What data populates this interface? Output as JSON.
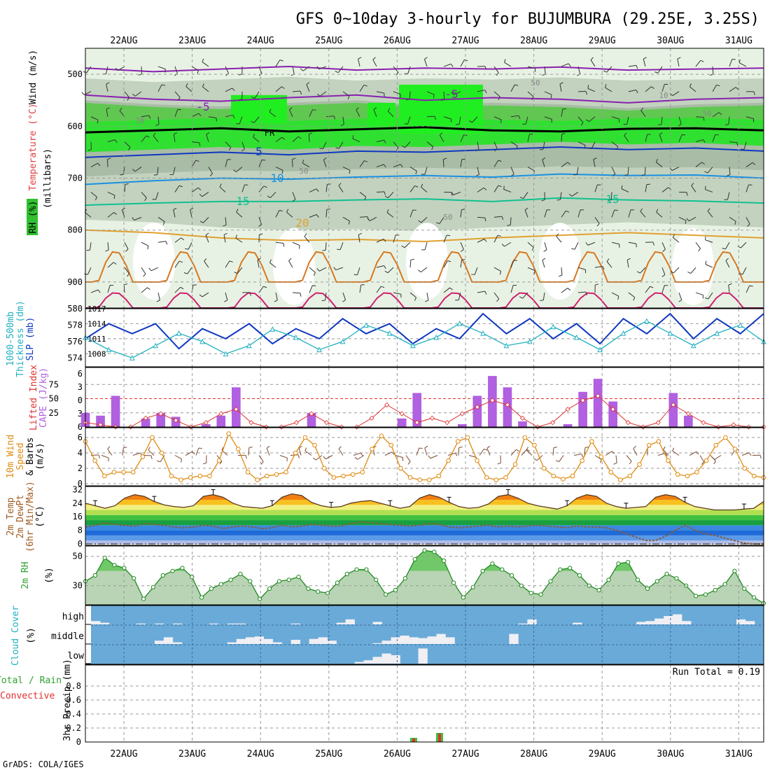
{
  "title": "GFS 0~10day 3-hourly for BUJUMBURA (29.25E, 3.25S)",
  "footer": "GrADS: COLA/IGES",
  "run_total": "Run Total = 0.19",
  "colors": {
    "temp_label": "#e04040",
    "wind_label": "#000000",
    "rh_label": "#00b000",
    "cyan": "#20b0c0",
    "blue": "#1038c0",
    "purple": "#b060e0",
    "red": "#e03030",
    "orange": "#e08a10",
    "green": "#30a030",
    "cloud_blue": "#6aaad8"
  },
  "chart_data": {
    "type": "line",
    "date_labels": [
      "22AUG",
      "23AUG",
      "24AUG",
      "25AUG",
      "26AUG",
      "27AUG",
      "28AUG",
      "29AUG",
      "30AUG",
      "31AUG"
    ],
    "panels": [
      {
        "id": "upper-air",
        "type": "heatmap",
        "ylabel_parts": [
          "Wind (m/s)",
          "Temperature (°C)",
          "RH (%)",
          "(millibars)"
        ],
        "y_ticks": [
          "500",
          "600",
          "700",
          "800",
          "900"
        ],
        "ylim": [
          950,
          450
        ],
        "contour_labels": [
          "-5",
          "-5",
          "5",
          "10",
          "15",
          "15",
          "20",
          "FR",
          "30",
          "50",
          "50",
          "50",
          "10",
          "50"
        ],
        "isotherms": [
          {
            "label": "-5",
            "color": "#8a20b0",
            "levels": [
              488,
              495,
              490,
              485,
              492,
              488,
              490,
              486,
              492,
              490,
              488
            ]
          },
          {
            "label": "-5",
            "color": "#8a20b0",
            "levels": [
              540,
              548,
              552,
              545,
              540,
              550,
              545,
              548,
              555,
              548,
              545
            ]
          },
          {
            "label": "FR",
            "color": "#000000",
            "levels": [
              612,
              608,
              604,
              610,
              606,
              602,
              608,
              610,
              605,
              604,
              608
            ]
          },
          {
            "label": "5",
            "color": "#1038c0",
            "levels": [
              660,
              655,
              650,
              655,
              648,
              650,
              645,
              640,
              645,
              642,
              648
            ]
          },
          {
            "label": "10",
            "color": "#1a90e0",
            "levels": [
              712,
              705,
              700,
              702,
              698,
              695,
              698,
              692,
              695,
              694,
              700
            ]
          },
          {
            "label": "15",
            "color": "#10c090",
            "levels": [
              752,
              748,
              745,
              745,
              742,
              740,
              745,
              738,
              742,
              744,
              748
            ]
          },
          {
            "label": "20",
            "color": "#e0a030",
            "levels": [
              800,
              805,
              815,
              820,
              818,
              822,
              815,
              810,
              805,
              810,
              815
            ]
          }
        ]
      },
      {
        "id": "slp-thickness",
        "type": "line",
        "ylabel_parts": [
          "1000-500mb",
          "Thickness (dm)",
          "SLP (mb)"
        ],
        "left_ticks": [
          "574",
          "576",
          "578",
          "580"
        ],
        "right_ticks": [
          "1008",
          "1011",
          "1014",
          "1017"
        ],
        "series": [
          {
            "name": "SLP (mb)",
            "values": [
              1011,
              1014,
              1012,
              1014,
              1009,
              1013,
              1011,
              1014,
              1010,
              1013,
              1011,
              1015,
              1012,
              1014,
              1010,
              1013,
              1011,
              1016,
              1012,
              1015,
              1011,
              1014,
              1010,
              1015,
              1012,
              1016,
              1011,
              1015,
              1012,
              1016
            ]
          },
          {
            "name": "Thickness (dm)",
            "values": [
              576.5,
              575,
              574,
              575.5,
              577,
              576,
              574.5,
              575.5,
              577.5,
              576.5,
              575,
              576,
              578,
              577,
              575.5,
              576.5,
              578.2,
              577,
              575.5,
              576,
              577.8,
              576.5,
              575,
              577,
              578.5,
              577,
              575.5,
              577,
              578,
              576
            ]
          }
        ]
      },
      {
        "id": "cape-li",
        "type": "bar",
        "ylabel_parts": [
          "Lifted Index",
          "CAPE (J/kg)"
        ],
        "left_ticks": [
          "-6",
          "-3",
          "0",
          "3",
          "6"
        ],
        "right_ticks": [
          "25",
          "50",
          "75"
        ],
        "series": [
          {
            "name": "CAPE (J/kg)",
            "values": [
              25,
              20,
              55,
              0,
              15,
              25,
              18,
              0,
              5,
              20,
              70,
              0,
              0,
              0,
              0,
              25,
              0,
              0,
              0,
              0,
              0,
              15,
              60,
              0,
              0,
              5,
              55,
              90,
              70,
              10,
              0,
              0,
              5,
              62,
              85,
              45,
              0,
              0,
              0,
              60,
              20,
              0,
              0,
              0,
              0,
              0
            ]
          },
          {
            "name": "Lifted Index",
            "values": [
              5,
              5.5,
              6,
              6,
              4,
              3,
              4.5,
              6,
              5,
              3,
              2,
              5,
              6,
              6,
              5,
              3,
              5,
              6,
              6,
              4,
              1,
              3,
              5,
              4,
              5,
              3,
              1.5,
              0,
              1,
              4,
              6,
              5,
              2,
              0,
              -1,
              2,
              5,
              6,
              5,
              1,
              3,
              5,
              6,
              5.5,
              6,
              6
            ]
          }
        ]
      },
      {
        "id": "wind10m",
        "type": "line",
        "ylabel_parts": [
          "10m Wind",
          "Speed",
          "& Barbs",
          "(m/s)"
        ],
        "left_ticks": [
          "0",
          "2",
          "4",
          "6"
        ],
        "series": [
          {
            "name": "10m Wind Speed",
            "values": [
              5.5,
              3,
              1,
              1.5,
              1.5,
              1.5,
              3.5,
              6,
              4,
              1,
              0.5,
              0.8,
              1,
              1,
              3,
              6.5,
              4.5,
              1.5,
              0.5,
              1,
              1.2,
              1.5,
              4,
              6,
              5,
              2,
              0.8,
              1,
              1.2,
              1.5,
              4.5,
              6.2,
              5,
              2,
              0.8,
              0.5,
              0.5,
              1,
              3,
              5.5,
              6,
              3,
              0.8,
              0.5,
              0.8,
              2.5,
              6,
              5,
              2,
              1,
              0.6,
              1,
              3,
              5.5,
              3.5,
              1.5,
              0.5,
              1,
              2.5,
              5,
              5.5,
              3,
              1.2,
              1,
              1.5,
              3,
              5,
              6,
              4.5,
              2,
              1,
              0.8
            ]
          }
        ]
      },
      {
        "id": "temp2m",
        "type": "area",
        "ylabel_parts": [
          "2m Temp",
          "2m DewPt",
          "(6hr Min/Max)",
          "(°C)"
        ],
        "left_ticks": [
          "0",
          "8",
          "16",
          "24",
          "32"
        ],
        "series": [
          {
            "name": "2m Temp",
            "values": [
              24,
              22.5,
              21,
              22.5,
              27,
              29,
              28,
              25,
              23,
              22,
              21.5,
              22.5,
              28,
              29,
              27.5,
              24,
              22,
              21.5,
              21,
              22.5,
              27.5,
              29.5,
              28.5,
              24.5,
              22.5,
              21.5,
              22,
              24,
              25,
              25.5,
              24,
              22.5,
              21,
              22,
              27,
              29,
              27.5,
              24.5,
              22,
              21,
              21.5,
              23.5,
              28,
              29,
              27,
              24,
              22.5,
              21.5,
              20.5,
              22.5,
              27,
              29,
              28,
              24,
              22,
              21,
              21.5,
              22,
              27.5,
              29,
              28,
              24.5,
              22,
              21,
              20,
              20,
              20,
              20.5,
              21,
              25
            ]
          },
          {
            "name": "2m DewPt",
            "values": [
              10,
              11,
              12.5,
              11.5,
              11,
              10.5,
              12,
              11.5,
              11,
              10,
              9.5,
              10,
              11,
              10.5,
              9,
              10,
              10.5,
              10,
              9,
              9.5,
              11,
              10,
              10.5,
              11.5,
              11,
              10.5,
              10.5,
              12,
              13,
              12.5,
              12,
              11.5,
              11,
              10.5,
              11,
              12,
              11.5,
              10,
              9.5,
              10,
              10.5,
              11,
              10,
              10.5,
              10,
              10.5,
              11,
              10.5,
              10,
              9.5,
              10.5,
              10,
              10,
              9.5,
              8,
              6,
              4,
              2,
              2,
              4.5,
              8,
              11,
              8,
              6,
              5,
              3.5,
              2,
              0.5,
              0,
              0
            ]
          }
        ]
      },
      {
        "id": "rh2m",
        "type": "area",
        "ylabel_parts": [
          "2m RH",
          "(%)"
        ],
        "left_ticks": [
          "30",
          "50"
        ],
        "series": [
          {
            "name": "2m RH",
            "values": [
              33,
              37,
              49,
              44,
              42,
              35,
              21,
              29,
              37,
              40,
              42,
              36,
              22,
              28,
              31,
              34,
              38,
              33,
              21,
              28,
              33,
              34,
              36,
              28,
              26,
              25,
              32,
              38,
              41,
              41,
              34,
              24,
              27,
              35,
              48,
              54,
              53,
              47,
              32,
              22,
              29,
              40,
              45,
              41,
              37,
              30,
              25,
              24,
              33,
              41,
              42,
              37,
              30,
              27,
              34,
              45,
              46,
              34,
              28,
              33,
              38,
              35,
              30,
              23,
              24,
              27,
              31,
              40,
              28,
              22,
              18
            ]
          }
        ]
      },
      {
        "id": "cloud",
        "type": "bar",
        "ylabel_parts": [
          "Cloud Cover",
          "(%)"
        ],
        "row_labels": [
          "high",
          "middle",
          "low"
        ],
        "series": [
          {
            "name": "high",
            "values": [
              20,
              10,
              0,
              0,
              0,
              5,
              0,
              5,
              0,
              5,
              0,
              0,
              0,
              5,
              0,
              5,
              5,
              0,
              0,
              0,
              0,
              0,
              5,
              0,
              0,
              0,
              0,
              10,
              30,
              0,
              0,
              15,
              0,
              0,
              0,
              0,
              0,
              0,
              0,
              0,
              0,
              0,
              0,
              0,
              0,
              0,
              0,
              5,
              30,
              0,
              0,
              0,
              0,
              10,
              0,
              0,
              0,
              0,
              0,
              0,
              15,
              20,
              35,
              50,
              60,
              20,
              0,
              0,
              0,
              0,
              0,
              30,
              20,
              0
            ]
          },
          {
            "name": "middle",
            "values": [
              0,
              0,
              0,
              0,
              0,
              0,
              0,
              20,
              40,
              10,
              0,
              0,
              0,
              0,
              0,
              10,
              30,
              40,
              45,
              30,
              10,
              0,
              25,
              0,
              30,
              40,
              20,
              0,
              0,
              0,
              0,
              5,
              20,
              40,
              50,
              40,
              35,
              45,
              60,
              40,
              0,
              0,
              0,
              0,
              0,
              0,
              60,
              0,
              0,
              0,
              0,
              0,
              0,
              0,
              0,
              0,
              0,
              0,
              0,
              0,
              0,
              0,
              0,
              0,
              0,
              0,
              0,
              0,
              0,
              0,
              0,
              0,
              0,
              0
            ]
          },
          {
            "name": "low",
            "values": [
              0,
              0,
              0,
              0,
              0,
              0,
              0,
              0,
              0,
              0,
              0,
              0,
              0,
              0,
              0,
              0,
              0,
              0,
              0,
              0,
              0,
              0,
              0,
              0,
              0,
              0,
              0,
              0,
              0,
              10,
              20,
              40,
              60,
              50,
              0,
              0,
              90,
              0,
              0,
              0,
              0,
              0,
              0,
              0,
              0,
              0,
              0,
              0,
              0,
              0,
              0,
              0,
              0,
              0,
              0,
              0,
              0,
              0,
              0,
              0,
              0,
              0,
              0,
              0,
              0,
              0,
              0,
              0,
              0,
              0,
              0,
              0,
              0,
              0
            ]
          }
        ]
      },
      {
        "id": "precip",
        "type": "bar",
        "ylabel_parts": [
          "Total / Rain",
          "Convective",
          "3hr Precip (mm)"
        ],
        "left_ticks": [
          "0",
          "0.2",
          "0.4",
          "0.6",
          "0.8"
        ],
        "ylim": [
          0,
          1
        ],
        "series": [
          {
            "name": "Total / Rain",
            "values": [
              0.06,
              0.13
            ]
          },
          {
            "name": "Convective",
            "values": [
              0.05,
              0.12
            ]
          }
        ]
      }
    ]
  }
}
